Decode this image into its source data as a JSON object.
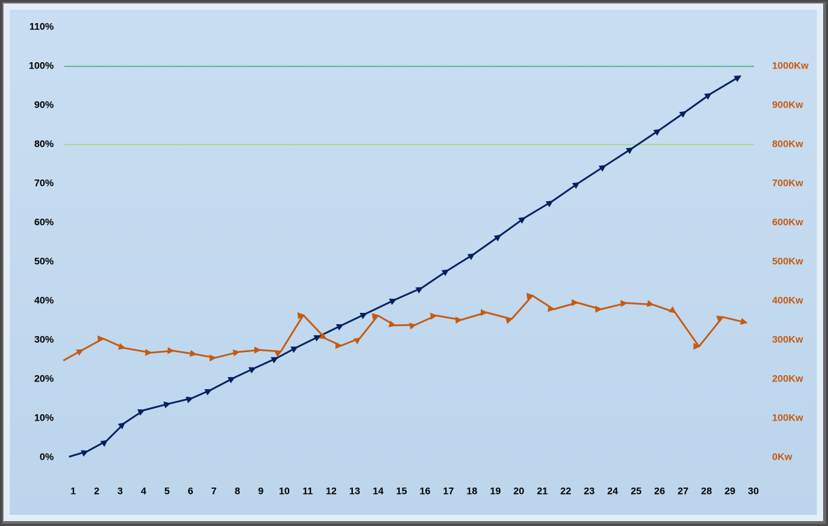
{
  "chart_data": {
    "type": "line",
    "xlim": [
      0.5,
      30.5
    ],
    "xticks": [
      1,
      2,
      3,
      4,
      5,
      6,
      7,
      8,
      9,
      10,
      11,
      12,
      13,
      14,
      15,
      16,
      17,
      18,
      19,
      20,
      21,
      22,
      23,
      24,
      25,
      26,
      27,
      28,
      29,
      30
    ],
    "ylim": [
      0,
      110
    ],
    "yticks": [
      {
        "value": 0,
        "label": "0%"
      },
      {
        "value": 10,
        "label": "10%"
      },
      {
        "value": 20,
        "label": "20%"
      },
      {
        "value": 30,
        "label": "30%"
      },
      {
        "value": 40,
        "label": "40%"
      },
      {
        "value": 50,
        "label": "50%"
      },
      {
        "value": 60,
        "label": "60%"
      },
      {
        "value": 70,
        "label": "70%"
      },
      {
        "value": 80,
        "label": "80%"
      },
      {
        "value": 90,
        "label": "90%"
      },
      {
        "value": 100,
        "label": "100%"
      },
      {
        "value": 110,
        "label": "110%"
      }
    ],
    "y2lim": [
      0,
      1100
    ],
    "y2ticks": [
      {
        "value": 0,
        "label": "0Kw"
      },
      {
        "value": 100,
        "label": "100Kw"
      },
      {
        "value": 200,
        "label": "200Kw"
      },
      {
        "value": 300,
        "label": "300Kw"
      },
      {
        "value": 400,
        "label": "400Kw"
      },
      {
        "value": 500,
        "label": "500Kw"
      },
      {
        "value": 600,
        "label": "600Kw"
      },
      {
        "value": 700,
        "label": "700Kw"
      },
      {
        "value": 800,
        "label": "800Kw"
      },
      {
        "value": 900,
        "label": "900Kw"
      },
      {
        "value": 1000,
        "label": "1000Kw"
      }
    ],
    "y2_color": "#c55a11",
    "reference_lines": [
      {
        "value": 100,
        "color": "#00a040"
      },
      {
        "value": 80,
        "color": "#92d050"
      }
    ],
    "series": [
      {
        "color": "#002060",
        "x": [
          0.82,
          1.6,
          2.43,
          3.18,
          4.01,
          5.11,
          6.07,
          6.87,
          7.86,
          8.75,
          9.7,
          10.54,
          11.52,
          12.48,
          13.49,
          14.74,
          15.87,
          16.98,
          18.08,
          19.21,
          20.25,
          21.42,
          22.55,
          23.68,
          24.84,
          26.01,
          27.11,
          28.18,
          29.44
        ],
        "values": [
          0.2,
          1.6,
          4.3,
          8.8,
          12.1,
          13.8,
          15.2,
          17.3,
          20.4,
          22.9,
          25.5,
          28.2,
          31.1,
          33.9,
          36.8,
          40.4,
          43.4,
          47.9,
          52.0,
          56.8,
          61.3,
          65.5,
          70.2,
          74.6,
          79.1,
          83.8,
          88.4,
          93.0,
          97.5
        ]
      },
      {
        "color": "#c55a11",
        "axis": "y2",
        "x": [
          0.58,
          1.39,
          2.28,
          3.18,
          4.31,
          5.26,
          6.22,
          7.05,
          8.06,
          8.96,
          9.85,
          10.81,
          11.76,
          12.42,
          13.22,
          13.99,
          14.71,
          15.58,
          16.47,
          17.54,
          18.61,
          19.69,
          20.58,
          21.48,
          22.49,
          23.5,
          24.58,
          25.71,
          26.66,
          27.68,
          28.69,
          29.7
        ],
        "values": [
          248,
          275,
          304,
          280,
          268,
          273,
          264,
          255,
          270,
          275,
          271,
          364,
          304,
          286,
          305,
          363,
          338,
          339,
          363,
          352,
          371,
          354,
          414,
          379,
          396,
          379,
          395,
          391,
          371,
          284,
          359,
          345
        ]
      }
    ]
  }
}
